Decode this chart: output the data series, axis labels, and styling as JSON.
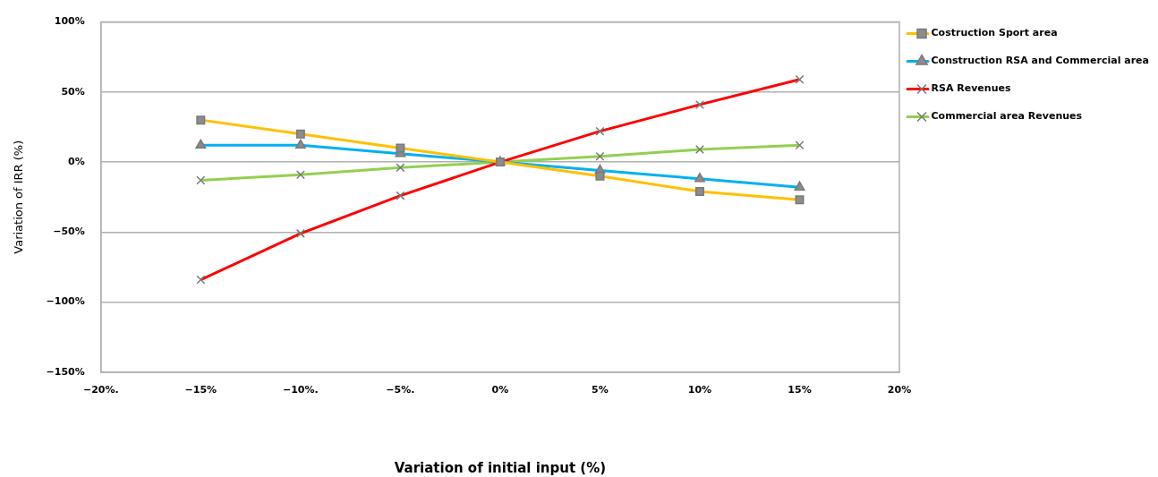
{
  "chart_data": {
    "type": "line",
    "xlabel": "Variation of initial input (%)",
    "ylabel": "Variation of IRR (%)",
    "x": [
      -15,
      -10,
      -5,
      0,
      5,
      10,
      15
    ],
    "xlim": [
      -20,
      20
    ],
    "xticks": [
      {
        "value": -20,
        "label": "−20%."
      },
      {
        "value": -15,
        "label": "−15%"
      },
      {
        "value": -10,
        "label": "−10%."
      },
      {
        "value": -5,
        "label": "−5%."
      },
      {
        "value": 0,
        "label": "0%"
      },
      {
        "value": 5,
        "label": "5%"
      },
      {
        "value": 10,
        "label": "10%"
      },
      {
        "value": 15,
        "label": "15%"
      },
      {
        "value": 20,
        "label": "20%"
      }
    ],
    "ylim": [
      -150,
      100
    ],
    "yticks": [
      {
        "value": -150,
        "label": "−150%"
      },
      {
        "value": -100,
        "label": "−100%"
      },
      {
        "value": -50,
        "label": "−50%"
      },
      {
        "value": 0,
        "label": "0%"
      },
      {
        "value": 50,
        "label": "50%"
      },
      {
        "value": 100,
        "label": "100%"
      }
    ],
    "grid": "y",
    "legend": "top right",
    "line_style": "solid",
    "series": [
      {
        "name": "Costruction Sport area",
        "color": "#ffc000",
        "marker": "square",
        "values": [
          30,
          20,
          10,
          0,
          -10,
          -21,
          -27
        ]
      },
      {
        "name": "Construction RSA and Commercial area",
        "color": "#00b0f0",
        "marker": "triangle",
        "values": [
          12,
          12,
          6,
          0,
          -6,
          -12,
          -18
        ]
      },
      {
        "name": "RSA Revenues",
        "color": "#ff0000",
        "marker": "cross",
        "values": [
          -84,
          -51,
          -24,
          0,
          22,
          41,
          59
        ]
      },
      {
        "name": "Commercial area Revenues",
        "color": "#92d050",
        "marker": "cross",
        "values": [
          -13,
          -9,
          -4,
          0,
          4,
          9,
          12
        ]
      }
    ]
  }
}
